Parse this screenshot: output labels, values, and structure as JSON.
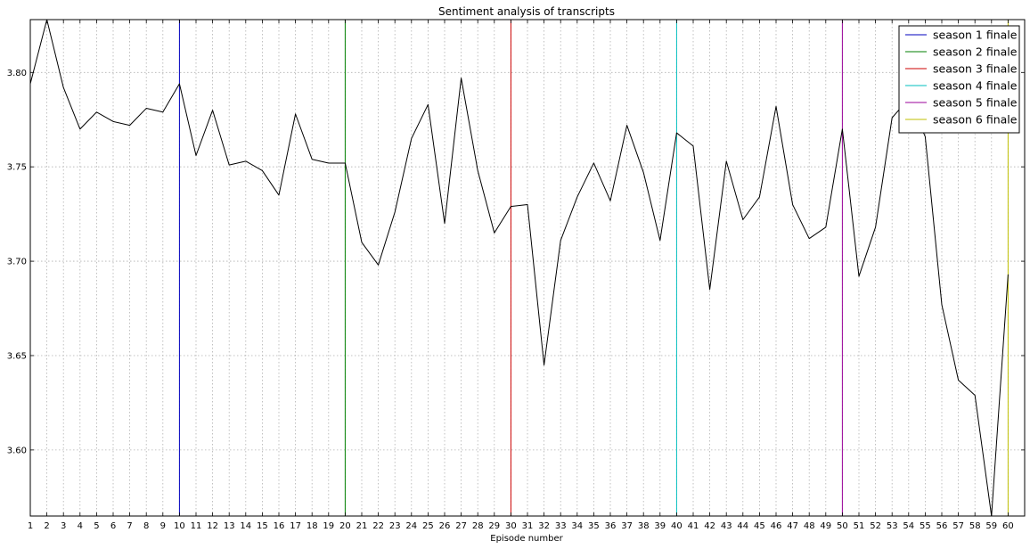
{
  "chart_data": {
    "type": "line",
    "title": "Sentiment analysis of transcripts",
    "xlabel": "Episode number",
    "ylabel": "",
    "xlim": [
      1,
      61
    ],
    "ylim": [
      3.565,
      3.828
    ],
    "x_ticks": [
      1,
      2,
      3,
      4,
      5,
      6,
      7,
      8,
      9,
      10,
      11,
      12,
      13,
      14,
      15,
      16,
      17,
      18,
      19,
      20,
      21,
      22,
      23,
      24,
      25,
      26,
      27,
      28,
      29,
      30,
      31,
      32,
      33,
      34,
      35,
      36,
      37,
      38,
      39,
      40,
      41,
      42,
      43,
      44,
      45,
      46,
      47,
      48,
      49,
      50,
      51,
      52,
      53,
      54,
      55,
      56,
      57,
      58,
      59,
      60
    ],
    "y_ticks": [
      "3.60",
      "3.65",
      "3.70",
      "3.75",
      "3.80"
    ],
    "grid": true,
    "legend_position": "top-right",
    "series": [
      {
        "color": "#000000",
        "x": [
          1,
          2,
          3,
          4,
          5,
          6,
          7,
          8,
          9,
          10,
          11,
          12,
          13,
          14,
          15,
          16,
          17,
          18,
          19,
          20,
          21,
          22,
          23,
          24,
          25,
          26,
          27,
          28,
          29,
          30,
          31,
          32,
          33,
          34,
          35,
          36,
          37,
          38,
          39,
          40,
          41,
          42,
          43,
          44,
          45,
          46,
          47,
          48,
          49,
          50,
          51,
          52,
          53,
          54,
          55,
          56,
          57,
          58,
          59,
          60
        ],
        "values": [
          3.794,
          3.828,
          3.792,
          3.77,
          3.779,
          3.774,
          3.772,
          3.781,
          3.779,
          3.794,
          3.756,
          3.78,
          3.751,
          3.753,
          3.748,
          3.735,
          3.778,
          3.754,
          3.752,
          3.752,
          3.71,
          3.698,
          3.726,
          3.765,
          3.783,
          3.72,
          3.797,
          3.748,
          3.715,
          3.729,
          3.73,
          3.645,
          3.711,
          3.734,
          3.752,
          3.732,
          3.772,
          3.747,
          3.711,
          3.768,
          3.761,
          3.685,
          3.753,
          3.722,
          3.734,
          3.782,
          3.73,
          3.712,
          3.718,
          3.77,
          3.692,
          3.718,
          3.776,
          3.786,
          3.766,
          3.677,
          3.637,
          3.629,
          3.565,
          3.693
        ]
      }
    ],
    "vlines": [
      {
        "x": 10,
        "name": "season 1 finale",
        "color": "#0000bf"
      },
      {
        "x": 20,
        "name": "season 2 finale",
        "color": "#007f00"
      },
      {
        "x": 30,
        "name": "season 3 finale",
        "color": "#cc0000"
      },
      {
        "x": 40,
        "name": "season 4 finale",
        "color": "#00bfbf"
      },
      {
        "x": 50,
        "name": "season 5 finale",
        "color": "#990099"
      },
      {
        "x": 60,
        "name": "season 6 finale",
        "color": "#bfbf00"
      }
    ]
  }
}
